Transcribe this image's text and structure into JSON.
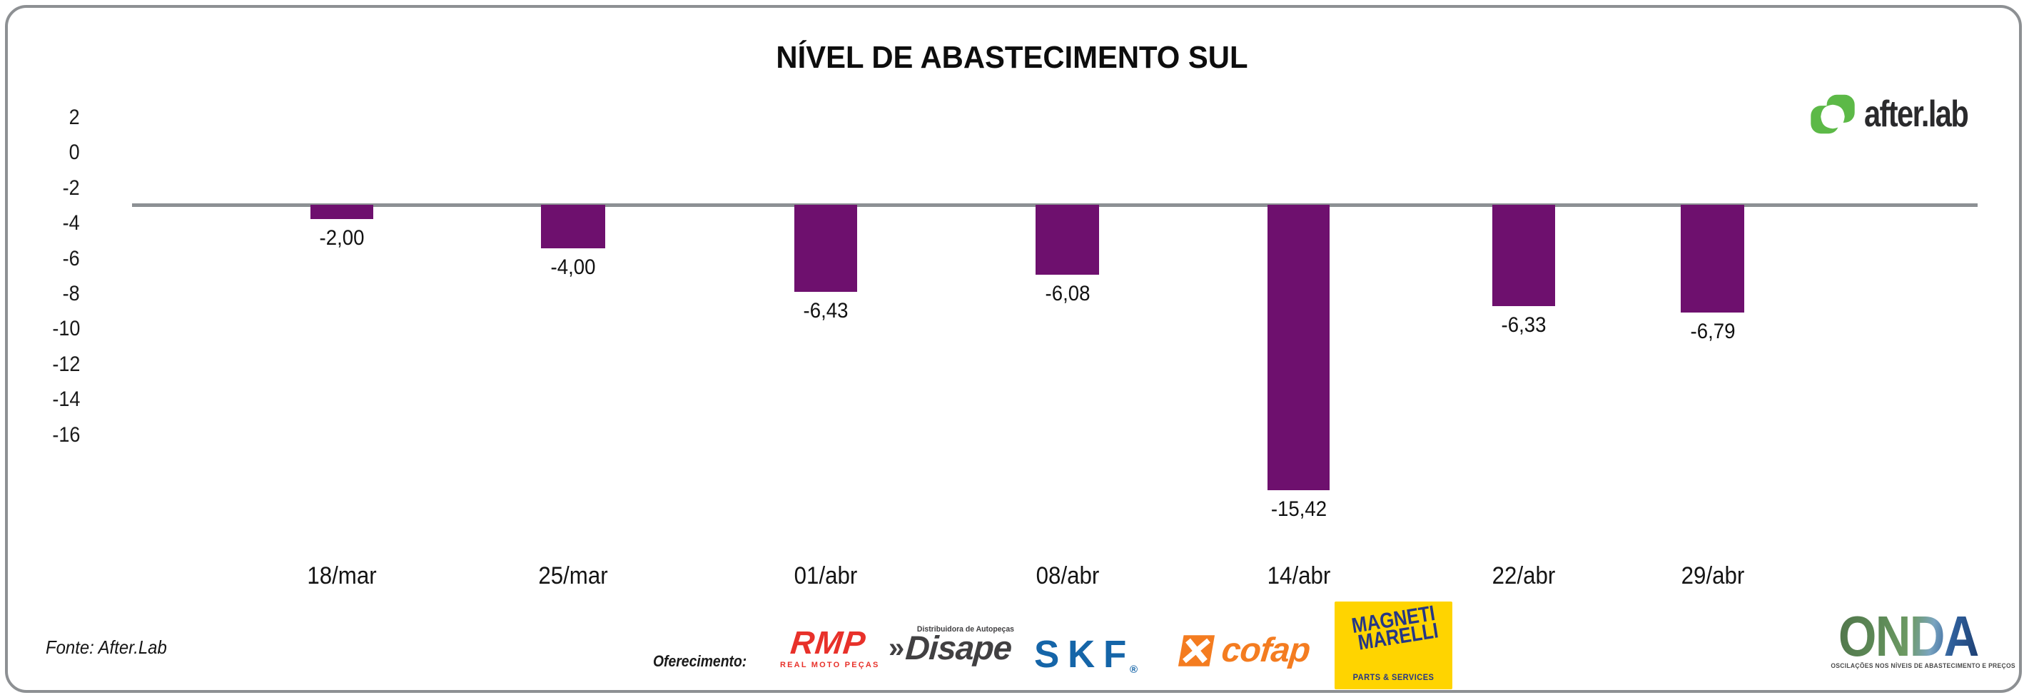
{
  "title": "NÍVEL DE ABASTECIMENTO SUL",
  "brand": {
    "name": "after.lab"
  },
  "footer": {
    "source": "Fonte: After.Lab",
    "sponsorship_label": "Oferecimento:"
  },
  "sponsors": {
    "rmp": {
      "name": "RMP",
      "subtitle": "REAL MOTO PEÇAS"
    },
    "disape": {
      "chevrons": "»",
      "name": "Disape",
      "subtitle": "Distribuidora de Autopeças"
    },
    "skf": {
      "name": "SKF",
      "registered": "®"
    },
    "cofap": {
      "name": "cofap"
    },
    "magneti_marelli": {
      "line1": "MAGNETI",
      "line2": "MARELLI",
      "subtitle": "PARTS & SERVICES"
    },
    "onda": {
      "name": "ONDA",
      "tagline": "OSCILAÇÕES NOS NÍVEIS DE ABASTECIMENTO E PREÇOS"
    }
  },
  "chart_data": {
    "type": "bar",
    "title": "NÍVEL DE ABASTECIMENTO SUL",
    "categories": [
      "18/mar",
      "25/mar",
      "01/abr",
      "08/abr",
      "14/abr",
      "22/abr",
      "29/abr"
    ],
    "values": [
      -2.0,
      -4.0,
      -6.43,
      -6.08,
      -15.42,
      -6.33,
      -6.79
    ],
    "value_labels": [
      "-2,00",
      "-4,00",
      "-6,43",
      "-6,08",
      "-15,42",
      "-6,33",
      "-6,79"
    ],
    "y_tick_labels": [
      "2",
      "0",
      "-2",
      "-4",
      "-6",
      "-8",
      "-10",
      "-12",
      "-14",
      "-16"
    ],
    "ylim": [
      -16,
      2
    ],
    "xlabel": "",
    "ylabel": "",
    "grid": false,
    "legend": false,
    "bar_color": "#6E106E",
    "baseline_color": "#8C9094"
  },
  "colors": {
    "bar": "#6E106E",
    "baseline": "#8C9094",
    "card_border": "#8D9093",
    "after_lab_green": "#5CB947",
    "rmp_red": "#E8312A",
    "disape_dark": "#414042",
    "skf_blue": "#1565A8",
    "cofap_orange": "#F47C20",
    "magneti_yellow": "#FFD400",
    "magneti_blue": "#253786"
  }
}
